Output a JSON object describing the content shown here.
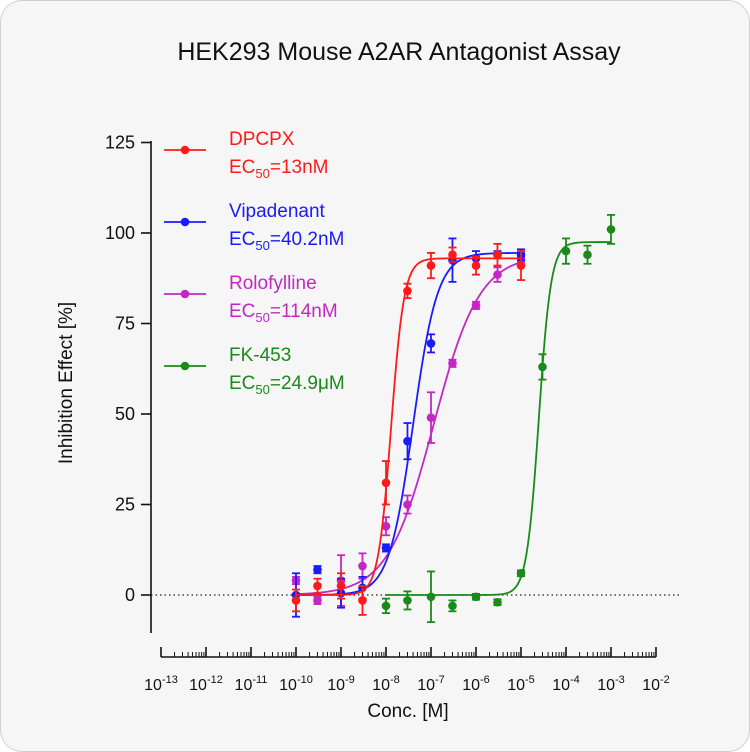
{
  "chart_data": {
    "type": "scatter",
    "title": "HEK293 Mouse A2AR Antagonist Assay",
    "xlabel": "Conc. [M]",
    "ylabel": "Inhibition Effect [%]",
    "x_scale": "log",
    "xlim": [
      1e-13,
      0.01
    ],
    "ylim": [
      -20,
      125
    ],
    "y_ticks": [
      0,
      25,
      50,
      75,
      100,
      125
    ],
    "x_tick_labels": [
      {
        "base": "10",
        "exp": "-13"
      },
      {
        "base": "10",
        "exp": "-12"
      },
      {
        "base": "10",
        "exp": "-11"
      },
      {
        "base": "10",
        "exp": "-10"
      },
      {
        "base": "10",
        "exp": "-9"
      },
      {
        "base": "10",
        "exp": "-8"
      },
      {
        "base": "10",
        "exp": "-7"
      },
      {
        "base": "10",
        "exp": "-6"
      },
      {
        "base": "10",
        "exp": "-5"
      },
      {
        "base": "10",
        "exp": "-4"
      },
      {
        "base": "10",
        "exp": "-3"
      },
      {
        "base": "10",
        "exp": "-2"
      }
    ],
    "legend_position": "top-left",
    "baseline": 0,
    "series": [
      {
        "name": "DPCPX",
        "ec50_prefix": "EC",
        "ec50_sub": "50",
        "ec50_value": "=13nM",
        "color": "#ff1a1a",
        "fit": {
          "bottom": 0,
          "top": 93,
          "ec50": 1.3e-08,
          "hill": 3.0
        },
        "points": [
          {
            "x": 1e-10,
            "y": -1.5,
            "err": 3
          },
          {
            "x": 3e-10,
            "y": 2.5,
            "err": 2
          },
          {
            "x": 1e-09,
            "y": 2.5,
            "err": 3.5
          },
          {
            "x": 3e-09,
            "y": -1.5,
            "err": 4
          },
          {
            "x": 1e-08,
            "y": 31,
            "err": 6
          },
          {
            "x": 3e-08,
            "y": 84,
            "err": 2
          },
          {
            "x": 1e-07,
            "y": 91,
            "err": 3.5
          },
          {
            "x": 3e-07,
            "y": 94,
            "err": 2
          },
          {
            "x": 1e-06,
            "y": 91,
            "err": 2.5
          },
          {
            "x": 3e-06,
            "y": 94,
            "err": 3
          },
          {
            "x": 1e-05,
            "y": 91,
            "err": 4
          }
        ]
      },
      {
        "name": "Vipadenant",
        "ec50_prefix": "EC",
        "ec50_sub": "50",
        "ec50_value": "=40.2nM",
        "color": "#1a1aff",
        "fit": {
          "bottom": 0,
          "top": 94.5,
          "ec50": 4.02e-08,
          "hill": 1.6
        },
        "points": [
          {
            "x": 1e-10,
            "y": 0,
            "err": 6
          },
          {
            "x": 3e-10,
            "y": 7,
            "err": 1
          },
          {
            "x": 1e-09,
            "y": 0.5,
            "err": 4
          },
          {
            "x": 3e-09,
            "y": 2,
            "err": 3
          },
          {
            "x": 1e-08,
            "y": 13,
            "err": 1
          },
          {
            "x": 3e-08,
            "y": 42.5,
            "err": 5
          },
          {
            "x": 1e-07,
            "y": 69.5,
            "err": 2.5
          },
          {
            "x": 3e-07,
            "y": 92.5,
            "err": 6
          },
          {
            "x": 1e-06,
            "y": 93,
            "err": 2
          },
          {
            "x": 3e-06,
            "y": 94,
            "err": 1
          },
          {
            "x": 1e-05,
            "y": 94,
            "err": 1.5
          }
        ]
      },
      {
        "name": "Rolofylline",
        "ec50_prefix": "EC",
        "ec50_sub": "50",
        "ec50_value": "=114nM",
        "color": "#c428c4",
        "fit": {
          "bottom": 0,
          "top": 94,
          "ec50": 1.14e-07,
          "hill": 0.85
        },
        "points": [
          {
            "x": 1e-10,
            "y": 4,
            "err": 1
          },
          {
            "x": 3e-10,
            "y": -1.5,
            "err": 1
          },
          {
            "x": 1e-09,
            "y": 4,
            "err": 7
          },
          {
            "x": 3e-09,
            "y": 8,
            "err": 3.5
          },
          {
            "x": 1e-08,
            "y": 19,
            "err": 2.5
          },
          {
            "x": 3e-08,
            "y": 25,
            "err": 2.5
          },
          {
            "x": 1e-07,
            "y": 49,
            "err": 7
          },
          {
            "x": 3e-07,
            "y": 64,
            "err": 1
          },
          {
            "x": 1e-06,
            "y": 80,
            "err": 1
          },
          {
            "x": 3e-06,
            "y": 88.5,
            "err": 2
          },
          {
            "x": 1e-05,
            "y": 93,
            "err": 1
          }
        ]
      },
      {
        "name": "FK-453",
        "ec50_prefix": "EC",
        "ec50_sub": "50",
        "ec50_value": "=24.9μM",
        "color": "#1a8a1a",
        "fit": {
          "bottom": 0,
          "top": 97.5,
          "ec50": 2.49e-05,
          "hill": 3.2
        },
        "points": [
          {
            "x": 1e-08,
            "y": -3,
            "err": 2
          },
          {
            "x": 3e-08,
            "y": -1.5,
            "err": 2.5
          },
          {
            "x": 1e-07,
            "y": -0.5,
            "err": 7
          },
          {
            "x": 3e-07,
            "y": -3,
            "err": 1.5
          },
          {
            "x": 1e-06,
            "y": -0.5,
            "err": 0.8
          },
          {
            "x": 3e-06,
            "y": -2,
            "err": 0.8
          },
          {
            "x": 1e-05,
            "y": 6,
            "err": 0.8
          },
          {
            "x": 3e-05,
            "y": 63,
            "err": 3.5
          },
          {
            "x": 0.0001,
            "y": 95,
            "err": 3.5
          },
          {
            "x": 0.0003,
            "y": 94,
            "err": 2.5
          },
          {
            "x": 0.001,
            "y": 101,
            "err": 4
          }
        ]
      }
    ]
  }
}
